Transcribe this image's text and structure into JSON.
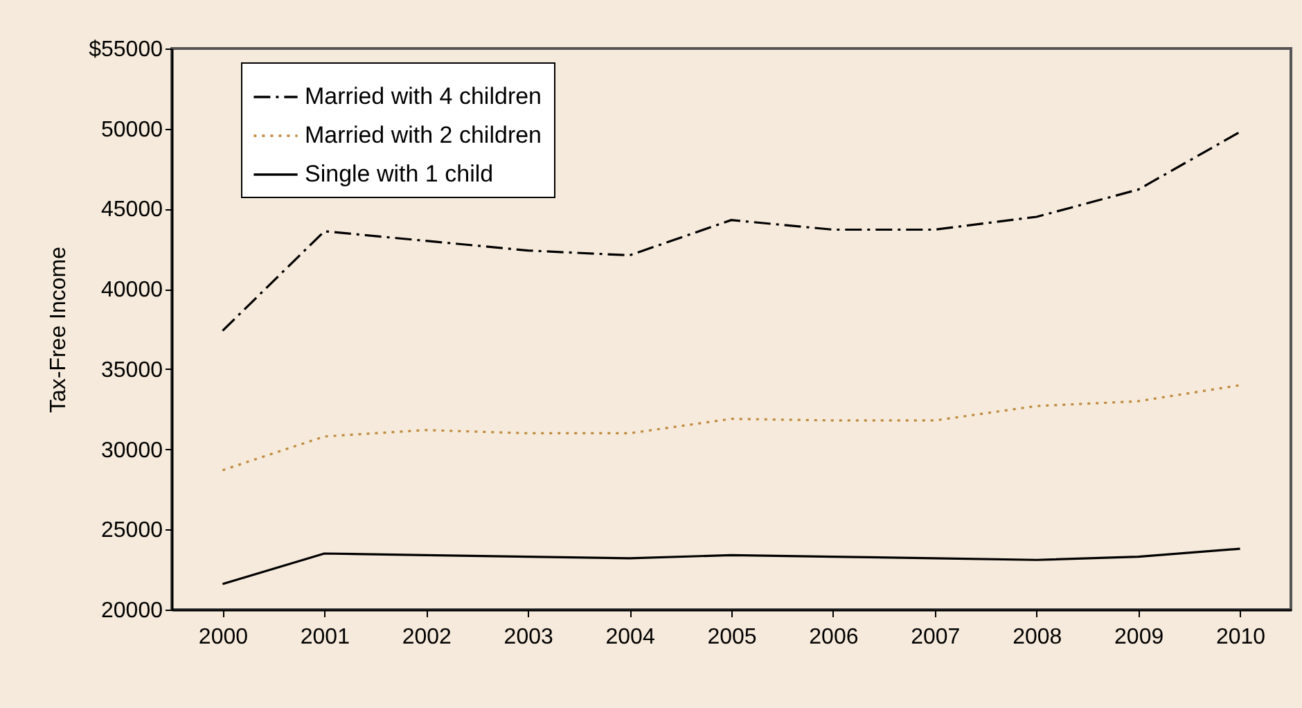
{
  "chart_data": {
    "type": "line",
    "ylabel": "Tax-Free Income",
    "categories": [
      "2000",
      "2001",
      "2002",
      "2003",
      "2004",
      "2005",
      "2006",
      "2007",
      "2008",
      "2009",
      "2010"
    ],
    "series": [
      {
        "name": "Married with 4 children",
        "color": "#000000",
        "line_style": "dashed",
        "values": [
          37400,
          43600,
          43000,
          42400,
          42100,
          44300,
          43700,
          43700,
          44500,
          46200,
          49800
        ]
      },
      {
        "name": "Married with 2 children",
        "color": "#c08a3e",
        "line_style": "dotted",
        "values": [
          28700,
          30800,
          31200,
          31000,
          31000,
          31900,
          31800,
          31800,
          32700,
          33000,
          34000
        ]
      },
      {
        "name": "Single with 1 child",
        "color": "#000000",
        "line_style": "solid",
        "values": [
          21600,
          23500,
          23400,
          23300,
          23200,
          23400,
          23300,
          23200,
          23100,
          23300,
          23800
        ]
      }
    ],
    "ylim": [
      20000,
      55000
    ],
    "yticks": [
      20000,
      25000,
      30000,
      35000,
      40000,
      45000,
      50000,
      {
        "value": 55000,
        "label": "$55000"
      }
    ],
    "grid": false,
    "legend": "top left",
    "marker": "none"
  }
}
